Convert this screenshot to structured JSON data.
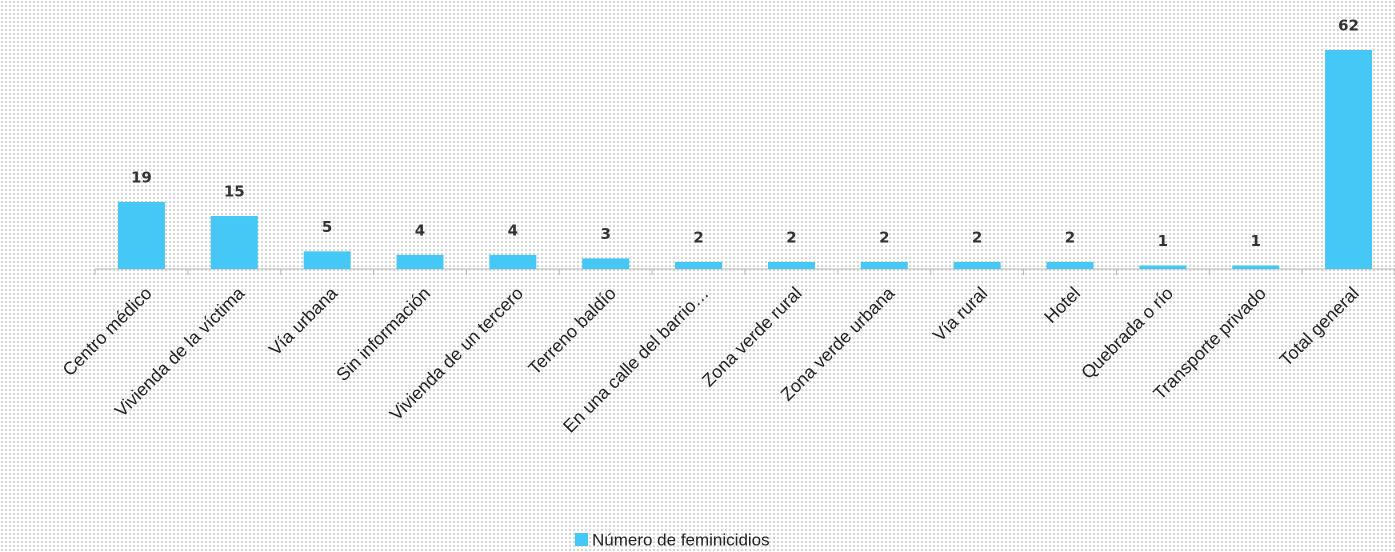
{
  "chart_data": {
    "type": "bar",
    "categories": [
      "Centro médico",
      "Vivienda de la víctima",
      "Vía urbana",
      "Sin información",
      "Vivienda de un tercero",
      "Terreno baldío",
      "En una calle del barrio…",
      "Zona verde rural",
      "Zona verde urbana",
      "Vía rural",
      "Hotel",
      "Quebrada o río",
      "Transporte privado",
      "Total general"
    ],
    "series": [
      {
        "name": "Número de feminicidios",
        "color": "#45c8f5",
        "values": [
          19,
          15,
          5,
          4,
          4,
          3,
          2,
          2,
          2,
          2,
          2,
          1,
          1,
          62
        ]
      }
    ],
    "grid": false
  }
}
